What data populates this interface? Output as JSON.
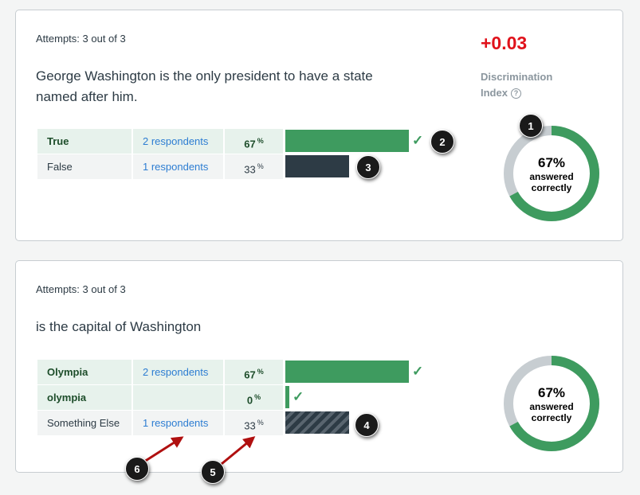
{
  "questions": [
    {
      "attempts": "Attempts: 3 out of 3",
      "text": "George Washington is the only president to have a state named after him.",
      "discrimination_score": "+0.03",
      "discrimination_label": "Discrimination Index",
      "help_icon": "?",
      "answers": [
        {
          "label": "True",
          "respondents": "2 respondents",
          "percent": "67",
          "correct": true,
          "bar_fraction": 0.67
        },
        {
          "label": "False",
          "respondents": "1 respondents",
          "percent": "33",
          "correct": false,
          "bar_fraction": 0.33
        }
      ],
      "donut": {
        "percent": "67%",
        "line1": "answered",
        "line2": "correctly",
        "fraction": 0.67
      }
    },
    {
      "attempts": "Attempts: 3 out of 3",
      "text": "is the capital of Washington",
      "answers": [
        {
          "label": "Olympia",
          "respondents": "2 respondents",
          "percent": "67",
          "correct": true,
          "bar_fraction": 0.67
        },
        {
          "label": "olympia",
          "respondents": "",
          "percent": "0",
          "correct": true,
          "bar_fraction": 0.0
        },
        {
          "label": "Something Else",
          "respondents": "1 respondents",
          "percent": "33",
          "correct": false,
          "bar_fraction": 0.33
        }
      ],
      "donut": {
        "percent": "67%",
        "line1": "answered",
        "line2": "correctly",
        "fraction": 0.67
      }
    }
  ],
  "percent_sign": "%",
  "check_icon": "✓",
  "callouts": [
    "1",
    "2",
    "3",
    "4",
    "5",
    "6"
  ],
  "colors": {
    "correct_green": "#3e9b5f",
    "incorrect_dark": "#2d3b45",
    "link_blue": "#2d7dd2",
    "score_red": "#e0121b",
    "donut_track": "#c7cdd1",
    "arrow_red": "#b01010"
  }
}
